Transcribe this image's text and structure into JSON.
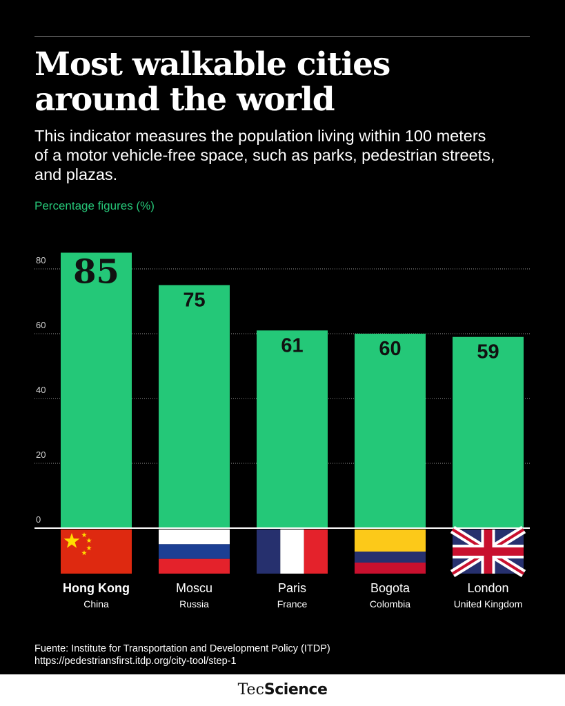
{
  "header": {
    "title_line1": "Most walkable cities",
    "title_line2": "around the world",
    "subtitle_line1": "This indicator measures the population living within 100 meters",
    "subtitle_line2": "of a motor vehicle-free space, such as parks, pedestrian streets,",
    "subtitle_line3": "and plazas.",
    "unit_label": "Percentage figures (%)"
  },
  "chart_data": {
    "type": "bar",
    "title": "Most walkable cities around the world",
    "ylabel": "Percentage figures (%)",
    "xlabel": "",
    "ylim": [
      0,
      85
    ],
    "yticks": [
      0,
      20,
      40,
      60,
      80
    ],
    "grid": true,
    "categories": [
      "Hong Kong",
      "Moscu",
      "Paris",
      "Bogota",
      "London"
    ],
    "countries": [
      "China",
      "Russia",
      "France",
      "Colombia",
      "United Kingdom"
    ],
    "values": [
      85,
      75,
      61,
      60,
      59
    ],
    "flags": [
      "china-flag",
      "russia-flag",
      "france-flag",
      "colombia-flag",
      "uk-flag"
    ],
    "bar_color": "#24c878",
    "highlight": "Hong Kong"
  },
  "footer": {
    "source_line1": "Fuente: Institute for Transportation and Development Policy (ITDP)",
    "source_line2": "https://pedestriansfirst.itdp.org/city-tool/step-1",
    "brand_light": "Tec",
    "brand_bold": "Science"
  }
}
